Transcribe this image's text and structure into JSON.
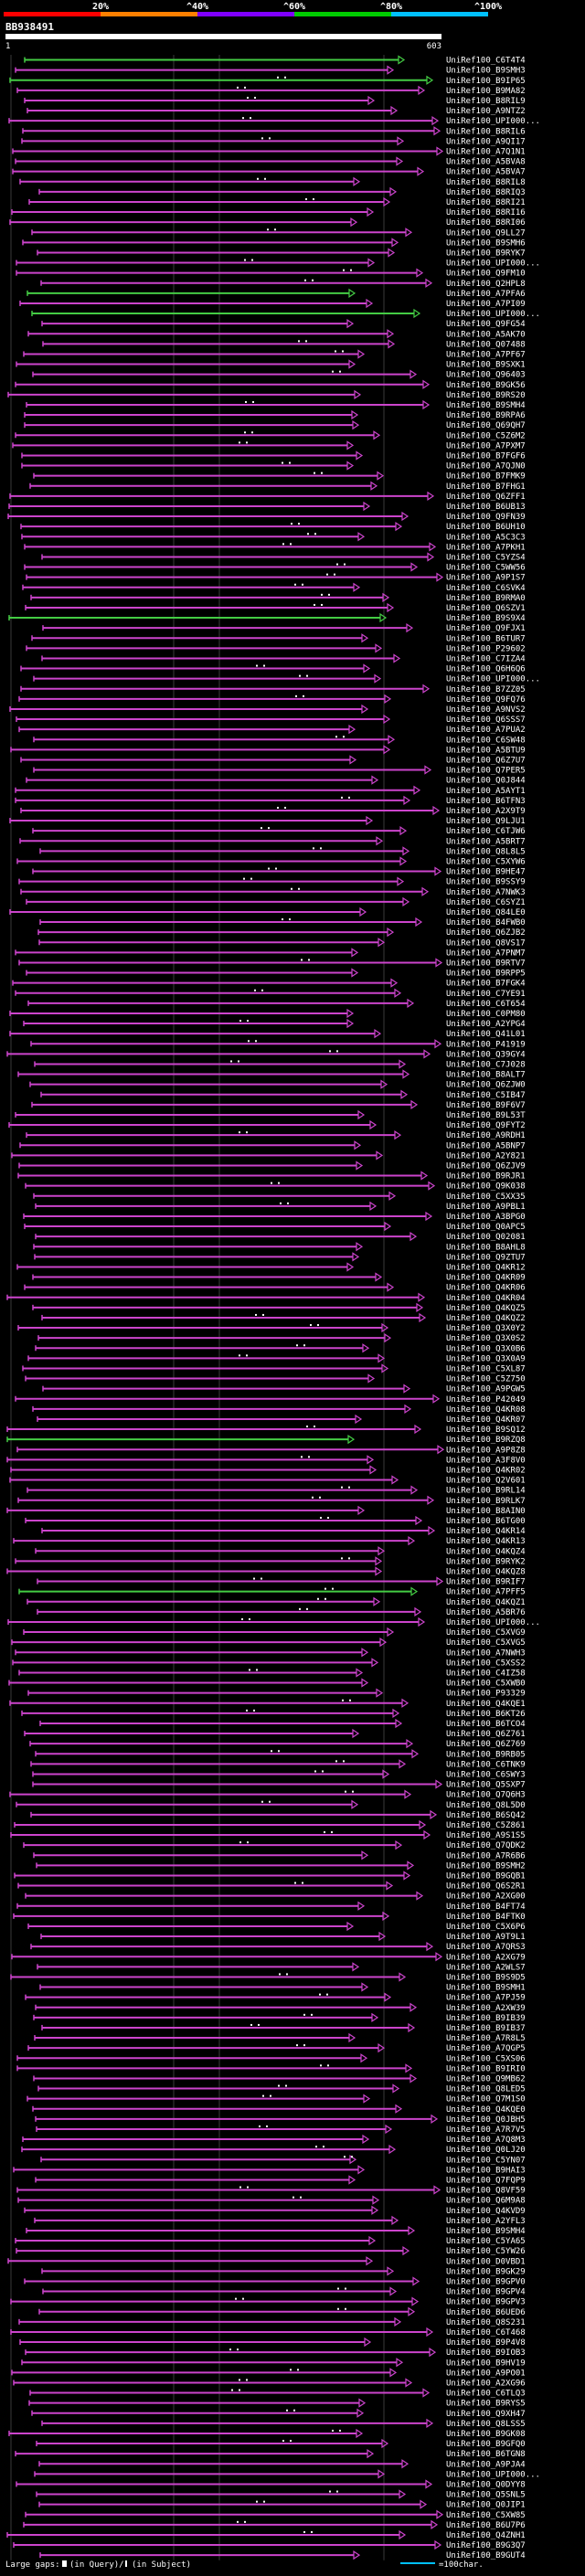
{
  "chart_data": {
    "type": "alignment-overview",
    "query_id": "BB938491",
    "query_start": "1",
    "query_end": "603",
    "scale": {
      "colors": [
        "#ff0000",
        "#ff8000",
        "#8000ff",
        "#00cc00",
        "#00c0ff"
      ],
      "tick_labels": [
        "20%",
        "^40%",
        "^60%",
        "^80%",
        "^100%"
      ]
    },
    "series_colors": {
      "hit": "#cc44cc",
      "hit_high": "#44cc44"
    },
    "hits": [
      {
        "label": "UniRef100_C6T4T4",
        "color": "high"
      },
      {
        "label": "UniRef100_B9SMH3"
      },
      {
        "label": "UniRef100_B9IP65",
        "color": "high"
      },
      {
        "label": "UniRef100_B9MA82"
      },
      {
        "label": "UniRef100_B8RIL9"
      },
      {
        "label": "UniRef100_A9NTZ2"
      },
      {
        "label": "UniRef100_UPI000..."
      },
      {
        "label": "UniRef100_B8RIL6"
      },
      {
        "label": "UniRef100_A9QI17"
      },
      {
        "label": "UniRef100_A7Q1N1"
      },
      {
        "label": "UniRef100_A5BVA8"
      },
      {
        "label": "UniRef100_A5BVA7"
      },
      {
        "label": "UniRef100_B8RIL8"
      },
      {
        "label": "UniRef100_B8RIQ3"
      },
      {
        "label": "UniRef100_B8RI21"
      },
      {
        "label": "UniRef100_B8RI16"
      },
      {
        "label": "UniRef100_B8RI06"
      },
      {
        "label": "UniRef100_Q9LL27"
      },
      {
        "label": "UniRef100_B9SMH6"
      },
      {
        "label": "UniRef100_B9RYK7"
      },
      {
        "label": "UniRef100_UPI000..."
      },
      {
        "label": "UniRef100_Q9FM10"
      },
      {
        "label": "UniRef100_Q2HPL8"
      },
      {
        "label": "UniRef100_A7PFA6",
        "color": "high"
      },
      {
        "label": "UniRef100_A7PI09"
      },
      {
        "label": "UniRef100_UPI000...",
        "color": "high"
      },
      {
        "label": "UniRef100_Q9FG54"
      },
      {
        "label": "UniRef100_A5AK70"
      },
      {
        "label": "UniRef100_Q07488"
      },
      {
        "label": "UniRef100_A7PF67"
      },
      {
        "label": "UniRef100_B9SXK1"
      },
      {
        "label": "UniRef100_Q96403"
      },
      {
        "label": "UniRef100_B9GK56"
      },
      {
        "label": "UniRef100_B9RS20"
      },
      {
        "label": "UniRef100_B9SMH4"
      },
      {
        "label": "UniRef100_B9RPA6"
      },
      {
        "label": "UniRef100_Q69QH7"
      },
      {
        "label": "UniRef100_C5Z6M2"
      },
      {
        "label": "UniRef100_A7PXM7"
      },
      {
        "label": "UniRef100_B7FGF6"
      },
      {
        "label": "UniRef100_A7QJN0"
      },
      {
        "label": "UniRef100_B7FMK9"
      },
      {
        "label": "UniRef100_B7FHG1"
      },
      {
        "label": "UniRef100_Q6ZFF1"
      },
      {
        "label": "UniRef100_B6UB13"
      },
      {
        "label": "UniRef100_Q9FN39"
      },
      {
        "label": "UniRef100_B6UH10"
      },
      {
        "label": "UniRef100_A5C3C3"
      },
      {
        "label": "UniRef100_A7PKH1"
      },
      {
        "label": "UniRef100_C5YZS4"
      },
      {
        "label": "UniRef100_C5WW56"
      },
      {
        "label": "UniRef100_A9P1S7"
      },
      {
        "label": "UniRef100_C6SVK4"
      },
      {
        "label": "UniRef100_B9RMA0"
      },
      {
        "label": "UniRef100_Q6SZV1"
      },
      {
        "label": "UniRef100_B9S9X4",
        "color": "high"
      },
      {
        "label": "UniRef100_Q9FJX1"
      },
      {
        "label": "UniRef100_B6TUR7"
      },
      {
        "label": "UniRef100_P29602"
      },
      {
        "label": "UniRef100_C7IZA4"
      },
      {
        "label": "UniRef100_Q6H6Q6"
      },
      {
        "label": "UniRef100_UPI000..."
      },
      {
        "label": "UniRef100_B7ZZ05"
      },
      {
        "label": "UniRef100_Q9FQ76"
      },
      {
        "label": "UniRef100_A9NVS2"
      },
      {
        "label": "UniRef100_Q6SSS7"
      },
      {
        "label": "UniRef100_A7PUA2"
      },
      {
        "label": "UniRef100_C6SW48"
      },
      {
        "label": "UniRef100_A5BTU9"
      },
      {
        "label": "UniRef100_Q6Z7U7"
      },
      {
        "label": "UniRef100_Q7PER5"
      },
      {
        "label": "UniRef100_Q0J844"
      },
      {
        "label": "UniRef100_A5AYT1"
      },
      {
        "label": "UniRef100_B6TFN3"
      },
      {
        "label": "UniRef100_A2X9T9"
      },
      {
        "label": "UniRef100_Q9LJU1"
      },
      {
        "label": "UniRef100_C6TJW6"
      },
      {
        "label": "UniRef100_A5BRT7"
      },
      {
        "label": "UniRef100_Q8L8L5"
      },
      {
        "label": "UniRef100_C5XYW6"
      },
      {
        "label": "UniRef100_B9HE47"
      },
      {
        "label": "UniRef100_B9SSY9"
      },
      {
        "label": "UniRef100_A7NWK3"
      },
      {
        "label": "UniRef100_C6SYZ1"
      },
      {
        "label": "UniRef100_Q84LE0"
      },
      {
        "label": "UniRef100_B4FWB0"
      },
      {
        "label": "UniRef100_Q6ZJB2"
      },
      {
        "label": "UniRef100_Q8VS17"
      },
      {
        "label": "UniRef100_A7PNM7"
      },
      {
        "label": "UniRef100_B9RTV7"
      },
      {
        "label": "UniRef100_B9RPP5"
      },
      {
        "label": "UniRef100_B7FGK4"
      },
      {
        "label": "UniRef100_C7YE91"
      },
      {
        "label": "UniRef100_C6T654"
      },
      {
        "label": "UniRef100_C0PM80"
      },
      {
        "label": "UniRef100_A2YPG4"
      },
      {
        "label": "UniRef100_Q41L01"
      },
      {
        "label": "UniRef100_P41919"
      },
      {
        "label": "UniRef100_Q39GY4"
      },
      {
        "label": "UniRef100_C7J028"
      },
      {
        "label": "UniRef100_B8ALT7"
      },
      {
        "label": "UniRef100_Q6ZJW0"
      },
      {
        "label": "UniRef100_C5IB47"
      },
      {
        "label": "UniRef100_B9F6V7"
      },
      {
        "label": "UniRef100_B9L53T"
      },
      {
        "label": "UniRef100_Q9FYT2"
      },
      {
        "label": "UniRef100_A9RDH1"
      },
      {
        "label": "UniRef100_A5BNP7"
      },
      {
        "label": "UniRef100_A2Y821"
      },
      {
        "label": "UniRef100_Q6ZJV9"
      },
      {
        "label": "UniRef100_B9RJR1"
      },
      {
        "label": "UniRef100_Q9K038"
      },
      {
        "label": "UniRef100_C5XX35"
      },
      {
        "label": "UniRef100_A9PBL1"
      },
      {
        "label": "UniRef100_A3BPG0"
      },
      {
        "label": "UniRef100_Q0APC5"
      },
      {
        "label": "UniRef100_Q02081"
      },
      {
        "label": "UniRef100_B8AHL8"
      },
      {
        "label": "UniRef100_Q9ZTU7"
      },
      {
        "label": "UniRef100_Q4KR12"
      },
      {
        "label": "UniRef100_Q4KR09"
      },
      {
        "label": "UniRef100_Q4KR06"
      },
      {
        "label": "UniRef100_Q4KR04"
      },
      {
        "label": "UniRef100_Q4KQZ5"
      },
      {
        "label": "UniRef100_Q4KQZ2"
      },
      {
        "label": "UniRef100_Q3X0Y2"
      },
      {
        "label": "UniRef100_Q3X0S2"
      },
      {
        "label": "UniRef100_Q3X0B6"
      },
      {
        "label": "UniRef100_Q3X0A9"
      },
      {
        "label": "UniRef100_C5XL87"
      },
      {
        "label": "UniRef100_C5Z750"
      },
      {
        "label": "UniRef100_A9PGW5"
      },
      {
        "label": "UniRef100_P42049"
      },
      {
        "label": "UniRef100_Q4KR08"
      },
      {
        "label": "UniRef100_Q4KR07"
      },
      {
        "label": "UniRef100_B9SQ12"
      },
      {
        "label": "UniRef100_B9RZQ8",
        "color": "high"
      },
      {
        "label": "UniRef100_A9P8Z8"
      },
      {
        "label": "UniRef100_A3F8V0"
      },
      {
        "label": "UniRef100_Q4KR02"
      },
      {
        "label": "UniRef100_Q2V601"
      },
      {
        "label": "UniRef100_B9RL14"
      },
      {
        "label": "UniRef100_B9RLK7"
      },
      {
        "label": "UniRef100_B8AIN0"
      },
      {
        "label": "UniRef100_B6TG00"
      },
      {
        "label": "UniRef100_Q4KR14"
      },
      {
        "label": "UniRef100_Q4KR13"
      },
      {
        "label": "UniRef100_Q4KQZ4"
      },
      {
        "label": "UniRef100_B9RYK2"
      },
      {
        "label": "UniRef100_Q4KQZ8"
      },
      {
        "label": "UniRef100_B9RIF7"
      },
      {
        "label": "UniRef100_A7PFF5",
        "color": "high"
      },
      {
        "label": "UniRef100_Q4KQZ1"
      },
      {
        "label": "UniRef100_A5BR76"
      },
      {
        "label": "UniRef100_UPI000..."
      },
      {
        "label": "UniRef100_C5XVG9"
      },
      {
        "label": "UniRef100_C5XVG5"
      },
      {
        "label": "UniRef100_A7NWH3"
      },
      {
        "label": "UniRef100_C5XSS2"
      },
      {
        "label": "UniRef100_C4IZ58"
      },
      {
        "label": "UniRef100_C5XWB0"
      },
      {
        "label": "UniRef100_P93329"
      },
      {
        "label": "UniRef100_Q4KQE1"
      },
      {
        "label": "UniRef100_B6KT26"
      },
      {
        "label": "UniRef100_B6TCO4"
      },
      {
        "label": "UniRef100_Q6Z761"
      },
      {
        "label": "UniRef100_Q6Z769"
      },
      {
        "label": "UniRef100_B9RB05"
      },
      {
        "label": "UniRef100_C6TNK9"
      },
      {
        "label": "UniRef100_C6SWY3"
      },
      {
        "label": "UniRef100_Q5SXP7"
      },
      {
        "label": "UniRef100_Q7Q6H3"
      },
      {
        "label": "UniRef100_Q8L5D0"
      },
      {
        "label": "UniRef100_B6SQ42"
      },
      {
        "label": "UniRef100_C5Z861"
      },
      {
        "label": "UniRef100_A9S1S5"
      },
      {
        "label": "UniRef100_Q7QDK2"
      },
      {
        "label": "UniRef100_A7R6B6"
      },
      {
        "label": "UniRef100_B9SMH2"
      },
      {
        "label": "UniRef100_B9GQB1"
      },
      {
        "label": "UniRef100_Q6S2R1"
      },
      {
        "label": "UniRef100_A2XG00"
      },
      {
        "label": "UniRef100_B4FT74"
      },
      {
        "label": "UniRef100_B4FTK0"
      },
      {
        "label": "UniRef100_C5X6P6"
      },
      {
        "label": "UniRef100_A9T9L1"
      },
      {
        "label": "UniRef100_A7QRS3"
      },
      {
        "label": "UniRef100_A2XG79"
      },
      {
        "label": "UniRef100_A2WLS7"
      },
      {
        "label": "UniRef100_B9S9D5"
      },
      {
        "label": "UniRef100_B9SMH1"
      },
      {
        "label": "UniRef100_A7PJ59"
      },
      {
        "label": "UniRef100_A2XW39"
      },
      {
        "label": "UniRef100_B9IB39"
      },
      {
        "label": "UniRef100_B9IB37"
      },
      {
        "label": "UniRef100_A7R8L5"
      },
      {
        "label": "UniRef100_A7QGP5"
      },
      {
        "label": "UniRef100_C5XS06"
      },
      {
        "label": "UniRef100_B9IRI0"
      },
      {
        "label": "UniRef100_Q9MB62"
      },
      {
        "label": "UniRef100_Q8LED5"
      },
      {
        "label": "UniRef100_Q7M1S0"
      },
      {
        "label": "UniRef100_Q4KQE0"
      },
      {
        "label": "UniRef100_Q0JBH5"
      },
      {
        "label": "UniRef100_A7R7V5"
      },
      {
        "label": "UniRef100_A7Q8M3"
      },
      {
        "label": "UniRef100_Q0LJ20"
      },
      {
        "label": "UniRef100_C5YN07"
      },
      {
        "label": "UniRef100_B9HAI3"
      },
      {
        "label": "UniRef100_Q7FQP9"
      },
      {
        "label": "UniRef100_Q8VF59"
      },
      {
        "label": "UniRef100_Q6M9A8"
      },
      {
        "label": "UniRef100_Q4KVD9"
      },
      {
        "label": "UniRef100_A2YFL3"
      },
      {
        "label": "UniRef100_B9SMH4"
      },
      {
        "label": "UniRef100_C5YA65"
      },
      {
        "label": "UniRef100_C5YW26"
      },
      {
        "label": "UniRef100_D0VBD1"
      },
      {
        "label": "UniRef100_B9GK29"
      },
      {
        "label": "UniRef100_B9GPV0"
      },
      {
        "label": "UniRef100_B9GPV4"
      },
      {
        "label": "UniRef100_B9GPV3"
      },
      {
        "label": "UniRef100_B6UED6"
      },
      {
        "label": "UniRef100_Q8S231"
      },
      {
        "label": "UniRef100_C6T468"
      },
      {
        "label": "UniRef100_B9P4V8"
      },
      {
        "label": "UniRef100_B9IOB3"
      },
      {
        "label": "UniRef100_B9HV19"
      },
      {
        "label": "UniRef100_A9PO01"
      },
      {
        "label": "UniRef100_A2XG96"
      },
      {
        "label": "UniRef100_C6TLQ3"
      },
      {
        "label": "UniRef100_B9RYS5"
      },
      {
        "label": "UniRef100_Q9XH47"
      },
      {
        "label": "UniRef100_Q8LSS5"
      },
      {
        "label": "UniRef100_B9GK08"
      },
      {
        "label": "UniRef100_B9GFQ0"
      },
      {
        "label": "UniRef100_B6TGN8"
      },
      {
        "label": "UniRef100_A9PJA4"
      },
      {
        "label": "UniRef100_UPI000..."
      },
      {
        "label": "UniRef100_Q0DYY8"
      },
      {
        "label": "UniRef100_Q5SNL5"
      },
      {
        "label": "UniRef100_Q0JIP1"
      },
      {
        "label": "UniRef100_C5XW85"
      },
      {
        "label": "UniRef100_B6U7P6"
      },
      {
        "label": "UniRef100_Q4ZNH1"
      },
      {
        "label": "UniRef100_B9G3Q7"
      },
      {
        "label": "UniRef100_B9GUT4"
      }
    ],
    "legend": {
      "gaps_prefix": "Large gaps:",
      "gap_query": "(in Query)/",
      "gap_subject": "(in Subject)",
      "scale_text": "=100char."
    }
  }
}
